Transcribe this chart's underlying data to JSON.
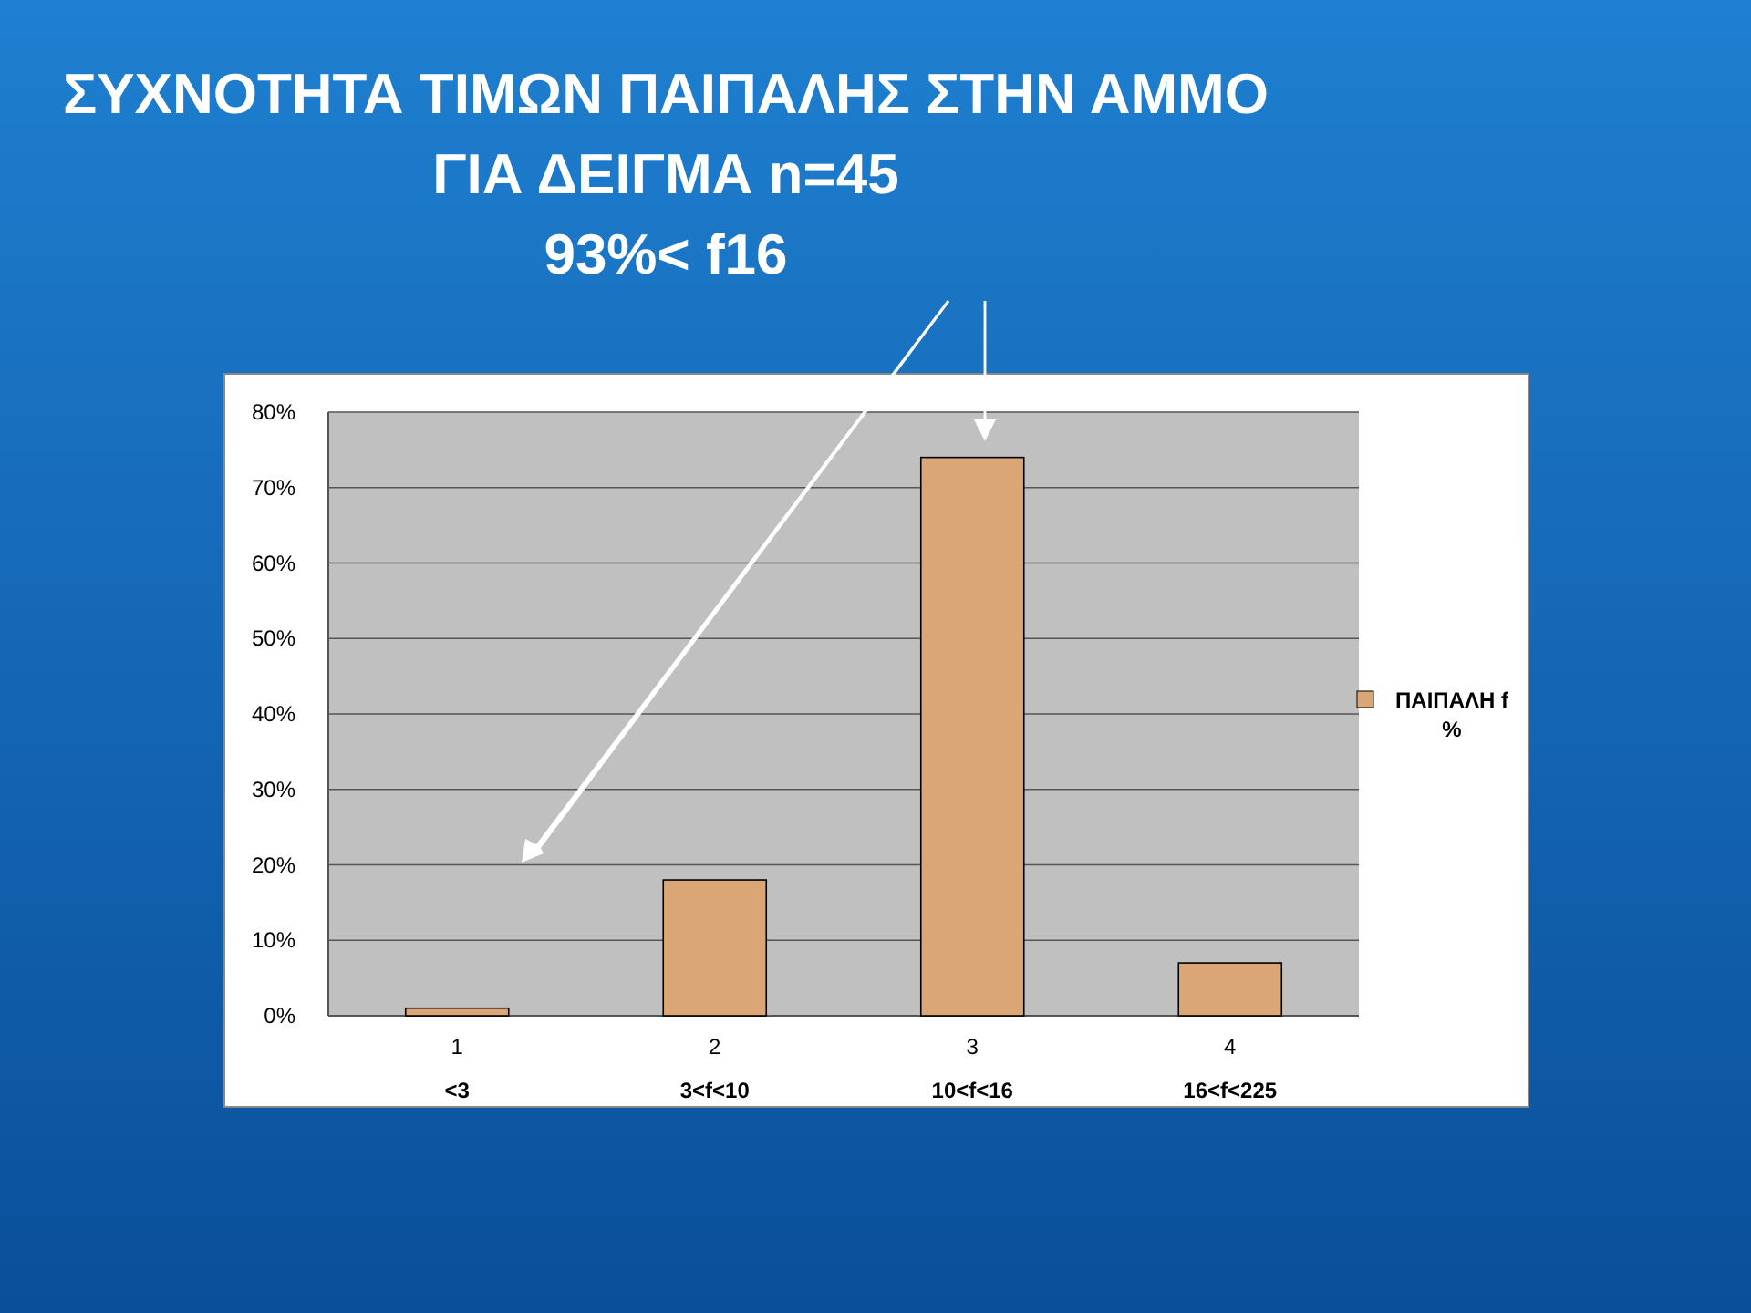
{
  "chart_data": {
    "type": "bar",
    "title": "ΣΥΧΝΟΤΗΤΑ ΤΙΜΩΝ ΠΑΙΠΑΛΗΣ ΣΤΗΝ ΑΜΜΟ\nΓΙΑ ΔΕΙΓΜΑ n=45",
    "annotations": [
      "93%< f16"
    ],
    "categories": [
      "1\n<3",
      "2\n3<f<10",
      "3\n10<f<16",
      "4\n16<f<225"
    ],
    "series": [
      {
        "name": "ΠΑΙΠΑΛΗ f\n%",
        "color": "#dba675",
        "values": [
          1,
          18,
          74,
          7
        ]
      }
    ],
    "ylim": [
      0,
      80
    ],
    "yticks": [
      {
        "value": 0,
        "label": "0%"
      },
      {
        "value": 10,
        "label": "10%"
      },
      {
        "value": 20,
        "label": "20%"
      },
      {
        "value": 30,
        "label": "30%"
      },
      {
        "value": 40,
        "label": "40%"
      },
      {
        "value": 50,
        "label": "50%"
      },
      {
        "value": 60,
        "label": "60%"
      },
      {
        "value": 70,
        "label": "70%"
      },
      {
        "value": 80,
        "label": "80%"
      }
    ],
    "grid": "y",
    "legend": "right"
  }
}
